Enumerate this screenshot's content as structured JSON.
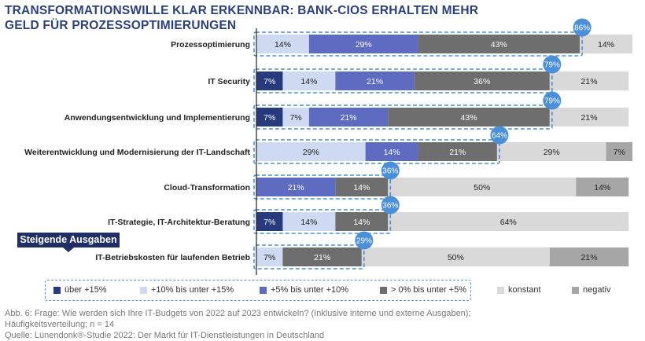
{
  "title": "TRANSFORMATIONSWILLE KLAR ERKENNBAR: BANK-CIOS ERHALTEN MEHR GELD FÜR PROZESSOPTIMIERUNGEN",
  "badge": "Steigende Ausgaben",
  "colors": {
    "s1": "#273a7e",
    "s2": "#cddaf1",
    "s3": "#5d6bc0",
    "s4": "#6e6e6e",
    "s5": "#d9d9d9",
    "s6": "#a6a6a6",
    "highlight": "#4a90d9"
  },
  "chart_data": {
    "type": "bar",
    "orientation": "horizontal",
    "stacked": true,
    "categories": [
      "Prozessoptimierung",
      "IT Security",
      "Anwendungsentwicklung und Implementierung",
      "Weiterentwicklung und Modernisierung der IT-Landschaft",
      "Cloud-Transformation",
      "IT-Strategie, IT-Architektur-Beratung",
      "IT-Betriebskosten für laufenden Betrieb"
    ],
    "series": [
      {
        "name": "über +15%",
        "values": [
          0,
          7,
          7,
          0,
          0,
          7,
          0
        ]
      },
      {
        "name": "+10% bis unter +15%",
        "values": [
          14,
          14,
          7,
          29,
          0,
          14,
          7
        ]
      },
      {
        "name": "+5% bis unter +10%",
        "values": [
          29,
          21,
          21,
          14,
          21,
          0,
          0
        ]
      },
      {
        "name": "> 0% bis unter +5%",
        "values": [
          43,
          36,
          43,
          21,
          14,
          14,
          21
        ]
      },
      {
        "name": "konstant",
        "values": [
          14,
          21,
          21,
          29,
          50,
          64,
          50
        ]
      },
      {
        "name": "negativ",
        "values": [
          0,
          0,
          0,
          7,
          14,
          0,
          21
        ]
      }
    ],
    "increase_totals": [
      "86%",
      "79%",
      "79%",
      "64%",
      "36%",
      "36%",
      "29%"
    ],
    "xlim": [
      0,
      100
    ]
  },
  "footnote": {
    "line1": "Abb. 6: Frage: Wie werden sich Ihre IT-Budgets von 2022 auf 2023 entwickeln? (Inklusive interne und externe Ausgaben);",
    "line2": "Häufigkeitsverteilung; n = 14",
    "line3": "Quelle: Lünendonk®-Studie 2022: Der Markt für IT-Dienstleistungen in Deutschland"
  }
}
